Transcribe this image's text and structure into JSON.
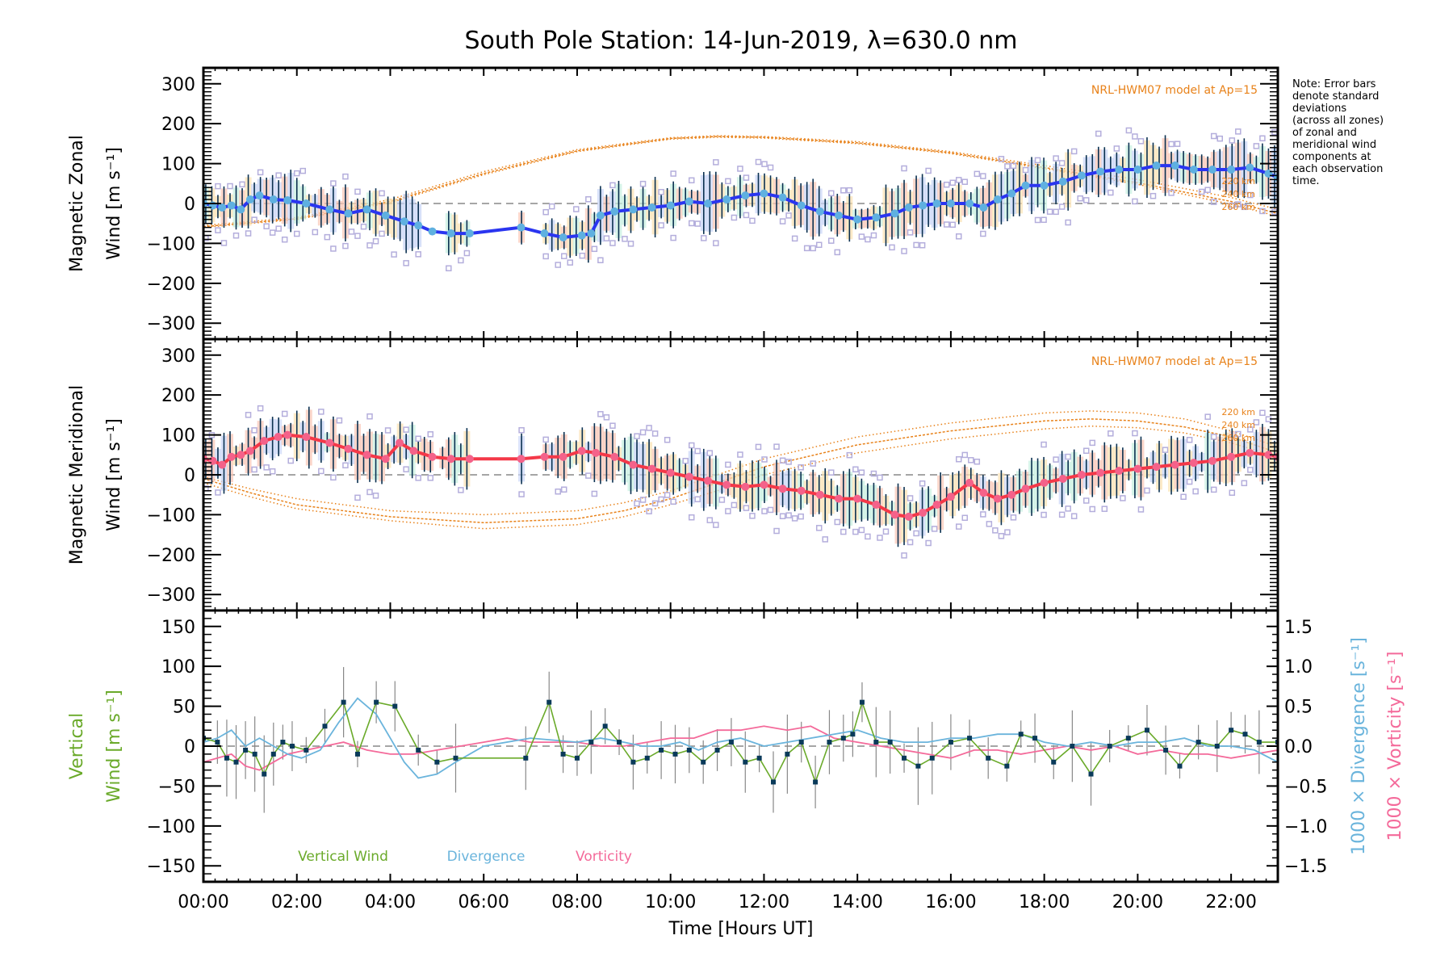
{
  "chart_data": {
    "type": "line",
    "title": "South Pole Station: 14-Jun-2019, λ=630.0 nm",
    "xlabel": "Time [Hours UT]",
    "xlim": [
      0,
      23
    ],
    "xticks": [
      0,
      2,
      4,
      6,
      8,
      10,
      12,
      14,
      16,
      18,
      20,
      22
    ],
    "xtick_labels": [
      "00:00",
      "02:00",
      "04:00",
      "06:00",
      "08:00",
      "10:00",
      "12:00",
      "14:00",
      "16:00",
      "18:00",
      "20:00",
      "22:00"
    ],
    "note": [
      "Note: Error bars",
      "denote standard",
      "deviations",
      "(across all zones)",
      "of zonal and",
      "meridional wind",
      "components at",
      "each observation",
      "time."
    ],
    "colors": {
      "zonal": "#2a35f0",
      "zonal_marker": "#5fb0e0",
      "meridional": "#f43848",
      "meridional_marker": "#f4628a",
      "model": "#e8821a",
      "vertical": "#6aaa2a",
      "divergence": "#6ab4dc",
      "vorticity": "#f46a9a",
      "errorbar": "#0a3050",
      "zero_line": "#888888"
    },
    "panels": [
      {
        "id": "zonal",
        "ylabel_line1": "Magnetic Zonal",
        "ylabel_line2": "Wind [m s⁻¹]",
        "ylim": [
          -340,
          340
        ],
        "yticks": [
          300,
          200,
          100,
          0,
          -100,
          -200,
          -300
        ],
        "ytick_labels": [
          "300",
          "200",
          "100",
          "0",
          "−100",
          "−200",
          "−300"
        ],
        "model_label": "NRL-HWM07 model at Ap=15",
        "model_altitudes": [
          "220 km",
          "240 km",
          "260 km"
        ],
        "series": [
          {
            "name": "Magnetic Zonal Wind",
            "x": [
              0.0,
              0.2,
              0.4,
              0.6,
              0.8,
              1.0,
              1.2,
              1.5,
              1.8,
              2.2,
              2.7,
              3.1,
              3.5,
              3.9,
              4.3,
              4.6,
              4.9,
              5.3,
              5.7,
              6.8,
              7.3,
              7.7,
              8.1,
              8.3,
              8.5,
              8.8,
              9.2,
              9.6,
              10.0,
              10.4,
              10.8,
              11.2,
              11.6,
              12.0,
              12.4,
              12.8,
              13.2,
              13.6,
              14.0,
              14.4,
              14.8,
              15.1,
              15.4,
              15.7,
              16.0,
              16.4,
              16.7,
              17.0,
              17.3,
              17.6,
              18.0,
              18.4,
              18.8,
              19.2,
              19.6,
              20.0,
              20.4,
              20.8,
              21.2,
              21.6,
              22.0,
              22.4,
              22.8,
              23.0
            ],
            "y": [
              0,
              -5,
              -10,
              -5,
              -15,
              10,
              20,
              10,
              8,
              0,
              -15,
              -25,
              -15,
              -30,
              -45,
              -55,
              -70,
              -75,
              -75,
              -60,
              -75,
              -85,
              -80,
              -75,
              -30,
              -20,
              -15,
              -10,
              -5,
              5,
              0,
              10,
              20,
              25,
              15,
              -5,
              -20,
              -30,
              -40,
              -35,
              -25,
              -10,
              -5,
              0,
              0,
              0,
              -10,
              10,
              25,
              45,
              45,
              55,
              70,
              80,
              85,
              85,
              95,
              95,
              85,
              85,
              85,
              90,
              75,
              65
            ]
          }
        ],
        "model_series": [
          {
            "name": "220 km",
            "x": [
              0,
              2,
              4,
              6,
              8,
              10,
              11,
              12,
              14,
              16,
              18,
              20,
              22,
              23
            ],
            "y": [
              -55,
              -35,
              10,
              80,
              135,
              165,
              170,
              168,
              155,
              130,
              95,
              60,
              15,
              -15
            ]
          },
          {
            "name": "240 km",
            "x": [
              0,
              2,
              4,
              6,
              8,
              10,
              11,
              12,
              14,
              16,
              18,
              20,
              22,
              23
            ],
            "y": [
              -58,
              -38,
              5,
              75,
              132,
              163,
              168,
              166,
              152,
              127,
              90,
              52,
              5,
              -25
            ]
          },
          {
            "name": "260 km",
            "x": [
              0,
              2,
              4,
              6,
              8,
              10,
              11,
              12,
              14,
              16,
              18,
              20,
              22,
              23
            ],
            "y": [
              -60,
              -40,
              2,
              72,
              130,
              161,
              166,
              164,
              150,
              125,
              87,
              48,
              -2,
              -32
            ]
          }
        ]
      },
      {
        "id": "meridional",
        "ylabel_line1": "Magnetic Meridional",
        "ylabel_line2": "Wind [m s⁻¹]",
        "ylim": [
          -340,
          340
        ],
        "yticks": [
          300,
          200,
          100,
          0,
          -100,
          -200,
          -300
        ],
        "ytick_labels": [
          "300",
          "200",
          "100",
          "0",
          "−100",
          "−200",
          "−300"
        ],
        "model_label": "NRL-HWM07 model at Ap=15",
        "model_altitudes": [
          "220 km",
          "240 km",
          "260 km"
        ],
        "series": [
          {
            "name": "Magnetic Meridional Wind",
            "x": [
              0.0,
              0.2,
              0.4,
              0.6,
              0.8,
              1.0,
              1.3,
              1.6,
              1.8,
              2.2,
              2.7,
              3.1,
              3.5,
              3.9,
              4.2,
              4.5,
              4.9,
              5.3,
              5.7,
              6.8,
              7.3,
              7.7,
              8.1,
              8.4,
              8.8,
              9.2,
              9.6,
              10.0,
              10.4,
              10.8,
              11.2,
              11.6,
              12.0,
              12.4,
              12.8,
              13.2,
              13.6,
              14.0,
              14.4,
              14.8,
              15.1,
              15.4,
              15.7,
              16.0,
              16.4,
              16.7,
              17.0,
              17.3,
              17.6,
              18.0,
              18.4,
              18.8,
              19.2,
              19.6,
              20.0,
              20.4,
              20.8,
              21.2,
              21.6,
              22.0,
              22.4,
              22.8,
              23.0
            ],
            "y": [
              40,
              35,
              25,
              45,
              50,
              60,
              85,
              95,
              100,
              95,
              80,
              65,
              50,
              40,
              80,
              60,
              45,
              40,
              40,
              40,
              45,
              45,
              60,
              55,
              45,
              25,
              15,
              5,
              -5,
              -15,
              -25,
              -30,
              -25,
              -35,
              -40,
              -50,
              -60,
              -60,
              -75,
              -100,
              -105,
              -95,
              -75,
              -55,
              -20,
              -45,
              -60,
              -50,
              -35,
              -20,
              -10,
              0,
              5,
              10,
              15,
              20,
              25,
              30,
              35,
              45,
              55,
              50,
              45
            ]
          }
        ],
        "model_series": [
          {
            "name": "220 km",
            "x": [
              0,
              1,
              2,
              4,
              6,
              8,
              9,
              10,
              11,
              12,
              14,
              16,
              18,
              19,
              20,
              21,
              22,
              23
            ],
            "y": [
              -5,
              -35,
              -60,
              -90,
              -100,
              -90,
              -70,
              -40,
              0,
              40,
              95,
              130,
              155,
              160,
              155,
              140,
              110,
              70
            ]
          },
          {
            "name": "240 km",
            "x": [
              0,
              1,
              2,
              4,
              6,
              8,
              9,
              10,
              11,
              12,
              14,
              16,
              18,
              19,
              20,
              21,
              22,
              23
            ],
            "y": [
              -10,
              -45,
              -75,
              -105,
              -120,
              -110,
              -90,
              -60,
              -20,
              20,
              75,
              110,
              135,
              140,
              135,
              120,
              95,
              55
            ]
          },
          {
            "name": "260 km",
            "x": [
              0,
              1,
              2,
              4,
              6,
              8,
              9,
              10,
              11,
              12,
              14,
              16,
              18,
              19,
              20,
              21,
              22,
              23
            ],
            "y": [
              -20,
              -55,
              -85,
              -115,
              -135,
              -125,
              -105,
              -75,
              -40,
              0,
              55,
              90,
              115,
              122,
              118,
              105,
              80,
              45
            ]
          }
        ]
      },
      {
        "id": "vertical",
        "ylabel_line1": "Vertical",
        "ylabel_line2": "Wind [m s⁻¹]",
        "ylim": [
          -170,
          170
        ],
        "yticks": [
          150,
          100,
          50,
          0,
          -50,
          -100,
          -150
        ],
        "ytick_labels": [
          "150",
          "100",
          "50",
          "0",
          "−50",
          "−100",
          "−150"
        ],
        "right_ylim": [
          -1.7,
          1.7
        ],
        "right_yticks": [
          1.5,
          1.0,
          0.5,
          0.0,
          -0.5,
          -1.0,
          -1.5
        ],
        "right_ytick_labels": [
          "1.5",
          "1.0",
          "0.5",
          "0.0",
          "−0.5",
          "−1.0",
          "−1.5"
        ],
        "right_ylabel_divergence": "1000 × Divergence [s⁻¹]",
        "right_ylabel_vorticity": "1000 × Vorticity [s⁻¹]",
        "legend": [
          "Vertical Wind",
          "Divergence",
          "Vorticity"
        ],
        "series": [
          {
            "name": "Vertical Wind",
            "x": [
              0.0,
              0.3,
              0.5,
              0.7,
              0.9,
              1.1,
              1.3,
              1.5,
              1.7,
              1.9,
              2.2,
              2.6,
              3.0,
              3.3,
              3.7,
              4.1,
              4.6,
              5.0,
              5.4,
              6.9,
              7.4,
              7.7,
              8.0,
              8.3,
              8.6,
              8.9,
              9.2,
              9.5,
              9.8,
              10.1,
              10.4,
              10.7,
              11.0,
              11.3,
              11.6,
              11.9,
              12.2,
              12.5,
              12.8,
              13.1,
              13.4,
              13.7,
              13.9,
              14.1,
              14.4,
              14.7,
              15.0,
              15.3,
              15.6,
              16.0,
              16.4,
              16.8,
              17.2,
              17.5,
              17.8,
              18.2,
              18.6,
              19.0,
              19.4,
              19.8,
              20.2,
              20.6,
              20.9,
              21.3,
              21.7,
              22.0,
              22.3,
              22.6,
              23.0
            ],
            "y": [
              10,
              5,
              -15,
              -20,
              -5,
              -10,
              -35,
              -10,
              5,
              0,
              -5,
              25,
              55,
              -10,
              55,
              50,
              -5,
              -20,
              -15,
              -15,
              55,
              -10,
              -15,
              5,
              25,
              5,
              -20,
              -15,
              -5,
              -10,
              -5,
              -20,
              -5,
              5,
              -20,
              -15,
              -45,
              -10,
              5,
              -45,
              5,
              10,
              15,
              55,
              5,
              5,
              -15,
              -25,
              -15,
              5,
              10,
              -15,
              -25,
              15,
              10,
              -20,
              0,
              -35,
              0,
              10,
              20,
              -5,
              -25,
              5,
              0,
              20,
              15,
              5,
              5
            ]
          },
          {
            "name": "Divergence",
            "x": [
              0.0,
              0.3,
              0.6,
              0.9,
              1.2,
              1.5,
              1.8,
              2.1,
              2.5,
              2.9,
              3.3,
              3.7,
              4.0,
              4.3,
              4.6,
              5.0,
              5.4,
              6.0,
              7.0,
              8.0,
              8.5,
              9.0,
              9.4,
              9.8,
              10.2,
              10.6,
              11.0,
              11.5,
              12.0,
              12.5,
              13.0,
              13.5,
              14.0,
              14.5,
              15.0,
              15.5,
              16.0,
              16.5,
              17.0,
              17.5,
              18.0,
              18.5,
              19.0,
              19.5,
              20.0,
              20.5,
              21.0,
              21.5,
              22.0,
              22.5,
              23.0
            ],
            "y": [
              0.05,
              0.1,
              0.2,
              0.0,
              0.1,
              0.0,
              -0.1,
              -0.15,
              -0.05,
              0.3,
              0.6,
              0.4,
              0.1,
              -0.2,
              -0.4,
              -0.35,
              -0.2,
              0.0,
              0.1,
              0.05,
              0.1,
              0.05,
              0.0,
              0.0,
              0.05,
              -0.05,
              0.05,
              0.1,
              0.0,
              0.05,
              0.1,
              0.15,
              0.2,
              0.1,
              0.05,
              0.05,
              0.1,
              0.1,
              0.15,
              0.15,
              0.05,
              0.0,
              0.05,
              0.0,
              0.05,
              0.05,
              0.1,
              0.0,
              0.0,
              -0.05,
              -0.2
            ]
          },
          {
            "name": "Vorticity",
            "x": [
              0.0,
              0.3,
              0.6,
              0.9,
              1.2,
              1.5,
              1.8,
              2.2,
              2.6,
              3.0,
              3.5,
              4.0,
              4.5,
              5.0,
              5.5,
              6.0,
              6.5,
              7.0,
              7.5,
              8.0,
              8.5,
              9.0,
              9.5,
              10.0,
              10.5,
              11.0,
              11.5,
              12.0,
              12.5,
              13.0,
              13.5,
              14.0,
              14.5,
              15.0,
              15.5,
              16.0,
              16.5,
              17.0,
              17.5,
              18.0,
              18.5,
              19.0,
              19.5,
              20.0,
              20.5,
              21.0,
              21.5,
              22.0,
              22.5,
              23.0
            ],
            "y": [
              -0.2,
              -0.15,
              -0.1,
              -0.25,
              -0.3,
              -0.2,
              -0.1,
              -0.05,
              0.0,
              0.05,
              -0.05,
              -0.1,
              -0.1,
              -0.05,
              0.0,
              0.05,
              0.1,
              0.05,
              0.05,
              0.05,
              0.0,
              0.0,
              0.05,
              0.1,
              0.1,
              0.2,
              0.2,
              0.25,
              0.2,
              0.25,
              0.1,
              0.05,
              0.0,
              -0.05,
              -0.1,
              -0.15,
              -0.05,
              -0.05,
              -0.1,
              -0.05,
              0.0,
              -0.05,
              0.0,
              -0.1,
              -0.05,
              -0.1,
              -0.1,
              -0.15,
              -0.1,
              -0.05
            ]
          }
        ]
      }
    ]
  }
}
